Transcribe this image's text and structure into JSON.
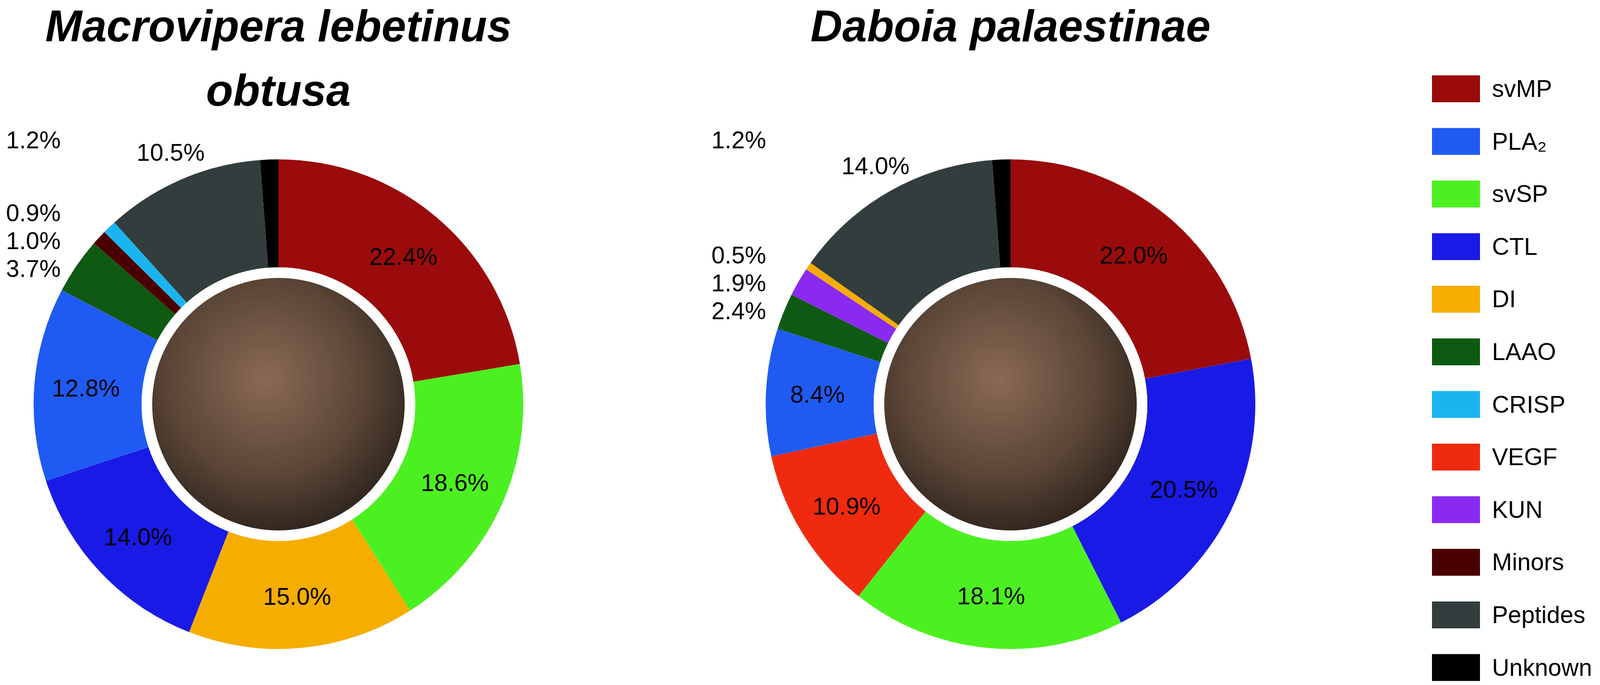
{
  "chart_data": [
    {
      "type": "pie",
      "title": "Macrovipera lebetinus obtusa",
      "categories": [
        "svMP",
        "svSP",
        "DI",
        "CTL",
        "PLA₂",
        "LAAO",
        "Minors",
        "CRISP",
        "Peptides",
        "Unknown"
      ],
      "values": [
        22.4,
        18.6,
        15.0,
        14.0,
        12.8,
        3.7,
        1.0,
        0.9,
        10.5,
        1.2
      ],
      "value_labels": [
        "22.4%",
        "18.6%",
        "15.0%",
        "14.0%",
        "12.8%",
        "3.7%",
        "1.0%",
        "0.9%",
        "10.5%",
        "1.2%"
      ],
      "colors": [
        "#9b0b0b",
        "#4cf021",
        "#f5ad00",
        "#1a1ae6",
        "#1f5bf2",
        "#0f5a12",
        "#4a0000",
        "#1ab4f0",
        "#333d3d",
        "#000000"
      ],
      "data_labels": true
    },
    {
      "type": "pie",
      "title": "Daboia palaestinae",
      "categories": [
        "svMP",
        "CTL",
        "svSP",
        "VEGF",
        "PLA₂",
        "LAAO",
        "KUN",
        "DI",
        "Peptides",
        "Unknown"
      ],
      "values": [
        22.0,
        20.5,
        18.1,
        10.9,
        8.4,
        2.4,
        1.9,
        0.5,
        14.0,
        1.2
      ],
      "value_labels": [
        "22.0%",
        "20.5%",
        "18.1%",
        "10.9%",
        "8.4%",
        "2.4%",
        "1.9%",
        "0.5%",
        "14.0%",
        "1.2%"
      ],
      "colors": [
        "#9b0b0b",
        "#1a1ae6",
        "#4cf021",
        "#f02a0e",
        "#1f5bf2",
        "#0f5a12",
        "#8a2af0",
        "#f5ad00",
        "#333d3d",
        "#000000"
      ],
      "data_labels": true
    }
  ],
  "legend": {
    "labels": [
      "svMP",
      "PLA₂",
      "svSP",
      "CTL",
      "DI",
      "LAAO",
      "CRISP",
      "VEGF",
      "KUN",
      "Minors",
      "Peptides",
      "Unknown"
    ],
    "colors": [
      "#9b0b0b",
      "#1f5bf2",
      "#4cf021",
      "#1a1ae6",
      "#f5ad00",
      "#0f5a12",
      "#1ab4f0",
      "#f02a0e",
      "#8a2af0",
      "#4a0000",
      "#333d3d",
      "#000000"
    ]
  }
}
